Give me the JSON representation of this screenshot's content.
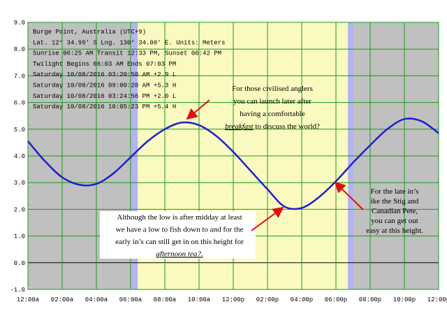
{
  "chart_data": {
    "type": "line",
    "header": [
      "Burge Point, Australia (UTC+9)",
      "Lat. 12° 34.99' S Lng. 130° 34.00' E. Units: Meters",
      "Sunrise 06:25 AM  Transit 12:33 PM, Sunset 06:42 PM",
      "Twilight Begins 06:03 AM  Ends 07:03 PM",
      "Saturday 10/08/2016 03:20:50 AM  +2.9 L",
      "Saturday 10/08/2016 09:00:20 AM  +5.3 H",
      "Saturday 10/08/2016 03:24:56 PM  +2.0 L",
      "Saturday 10/08/2016 10:05:23 PM  +5.4 H"
    ],
    "x": [
      0,
      1,
      2,
      3,
      4,
      5,
      6,
      7,
      8,
      9,
      10,
      11,
      12,
      13,
      14,
      15,
      16,
      17,
      18,
      19,
      20,
      21,
      22,
      23,
      24
    ],
    "series": [
      {
        "name": "Tide",
        "color": "#1f1fcc",
        "values": [
          4.55,
          3.8,
          3.2,
          2.92,
          2.95,
          3.35,
          3.95,
          4.55,
          5.0,
          5.25,
          5.15,
          4.75,
          4.15,
          3.45,
          2.75,
          2.1,
          2.05,
          2.45,
          3.05,
          3.75,
          4.4,
          5.0,
          5.38,
          5.3,
          4.85
        ]
      }
    ],
    "xlim": [
      0,
      24
    ],
    "xticks": [
      {
        "value": 0,
        "label": "12:00a"
      },
      {
        "value": 2,
        "label": "02:00a"
      },
      {
        "value": 4,
        "label": "04:00a"
      },
      {
        "value": 6,
        "label": "06:00a"
      },
      {
        "value": 8,
        "label": "08:00a"
      },
      {
        "value": 10,
        "label": "10:00a"
      },
      {
        "value": 12,
        "label": "12:00p"
      },
      {
        "value": 14,
        "label": "02:00p"
      },
      {
        "value": 16,
        "label": "04:00p"
      },
      {
        "value": 18,
        "label": "06:00p"
      },
      {
        "value": 20,
        "label": "08:00p"
      },
      {
        "value": 22,
        "label": "10:00p"
      },
      {
        "value": 24,
        "label": "12:00p"
      }
    ],
    "ylim": [
      -1,
      9
    ],
    "yticks": [
      {
        "value": -1,
        "label": "-1.0"
      },
      {
        "value": 0,
        "label": "0.0"
      },
      {
        "value": 1,
        "label": "1.0"
      },
      {
        "value": 2,
        "label": "2.0"
      },
      {
        "value": 3,
        "label": "3.0"
      },
      {
        "value": 4,
        "label": "4.0"
      },
      {
        "value": 5,
        "label": "5.0"
      },
      {
        "value": 6,
        "label": "6.0"
      },
      {
        "value": 7,
        "label": "7.0"
      },
      {
        "value": 8,
        "label": "8.0"
      },
      {
        "value": 9,
        "label": "9.0"
      }
    ],
    "grid": true,
    "shading": [
      {
        "from": 0,
        "to": 6.05,
        "color": "#c0c0c0"
      },
      {
        "from": 6.05,
        "to": 6.42,
        "color": "#b4b4f0"
      },
      {
        "from": 6.42,
        "to": 18.7,
        "color": "#fafac0"
      },
      {
        "from": 18.7,
        "to": 19.05,
        "color": "#b4b4f0"
      },
      {
        "from": 19.05,
        "to": 24,
        "color": "#c0c0c0"
      }
    ],
    "annotations": [
      {
        "lines": [
          [
            "For those civilised anglers"
          ],
          [
            "you can launch later after"
          ],
          [
            "having a comfortable"
          ],
          [
            {
              "em": "breakfast"
            },
            " to discuss the world?"
          ]
        ]
      },
      {
        "lines": [
          [
            "Although the low is after midday at least"
          ],
          [
            "we have a low to fish down to and for the"
          ],
          [
            "early in’s can still get in on this height for"
          ],
          [
            {
              "em": "afternoon tea?."
            }
          ]
        ]
      },
      {
        "lines": [
          [
            "For the late in’s"
          ],
          [
            "ike the Stig and"
          ],
          [
            "Canadian Pete,"
          ],
          [
            "you can get out"
          ],
          [
            "easy at this height."
          ]
        ]
      }
    ]
  }
}
